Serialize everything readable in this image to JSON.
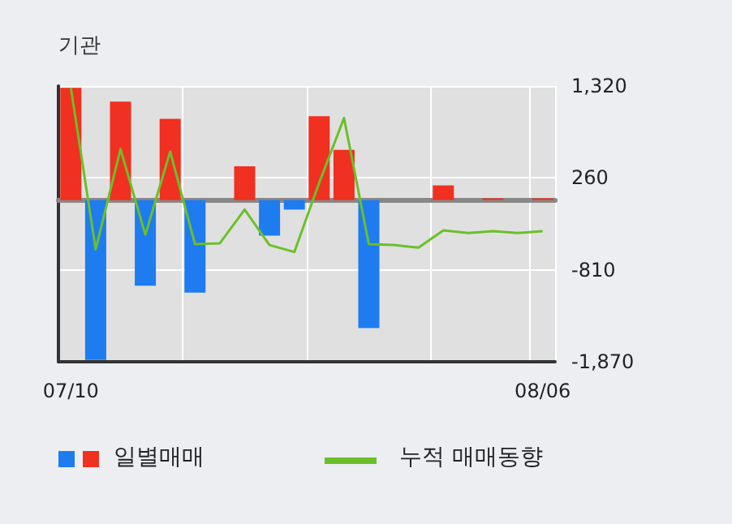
{
  "chart_data": {
    "type": "bar",
    "ylabel": "기관",
    "categories": [
      "07/10",
      null,
      null,
      null,
      null,
      null,
      null,
      null,
      null,
      null,
      null,
      null,
      null,
      null,
      null,
      null,
      null,
      null,
      null,
      "08/06"
    ],
    "series": [
      {
        "name": "일별매매",
        "colors": [
          "#f03020",
          "#1e7cf0",
          "#f03020",
          "#1e7cf0",
          "#f03020",
          "#1e7cf0",
          "#f03020",
          "#f03020",
          "#1e7cf0",
          "#1e7cf0",
          "#f03020",
          "#f03020",
          "#1e7cf0",
          "#f03020",
          "#f03020",
          "#f03020",
          "#f03020",
          "#f03020",
          "#f03020",
          "#f03020"
        ],
        "values": [
          1300,
          -1850,
          1140,
          -990,
          940,
          -1070,
          0,
          390,
          -410,
          -110,
          970,
          580,
          -1480,
          0,
          0,
          170,
          0,
          20,
          0,
          20
        ]
      },
      {
        "name": "누적 매매동향",
        "type": "line",
        "color": "#6cbf2a",
        "values": [
          1300,
          -570,
          590,
          -400,
          560,
          -510,
          -500,
          -110,
          -520,
          -600,
          200,
          950,
          -510,
          -520,
          -550,
          -350,
          -380,
          -360,
          -380,
          -360
        ]
      }
    ],
    "ylim": [
      -1870,
      1320
    ],
    "yticks": [
      {
        "value": 1320,
        "label": "1,320"
      },
      260,
      -810,
      {
        "value": -1870,
        "label": "-1,870"
      }
    ],
    "grid": true,
    "legend": "bottom",
    "marker": "none"
  }
}
